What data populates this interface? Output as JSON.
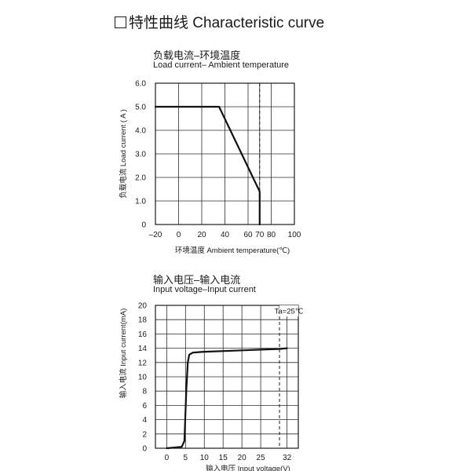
{
  "heading": {
    "zh": "特性曲线",
    "en": "Characteristic curve"
  },
  "chart_data": [
    {
      "type": "line",
      "title": "负载电流–环境温度",
      "subtitle": "Load current– Ambient temperature",
      "xlabel": "环境温度 Ambient temperature(℃)",
      "ylabel": "负载电流 Load current ( A )",
      "x_ticks": [
        "–20",
        "0",
        "20",
        "40",
        "60",
        "70",
        "80",
        "100"
      ],
      "x_tick_values": [
        -20,
        0,
        20,
        40,
        60,
        70,
        80,
        100
      ],
      "y_ticks": [
        "0",
        "1.0",
        "2.0",
        "3.0",
        "4.0",
        "5.0",
        "6.0"
      ],
      "y_tick_values": [
        0,
        1,
        2,
        3,
        4,
        5,
        6
      ],
      "xlim": [
        -20,
        100
      ],
      "ylim": [
        0,
        6
      ],
      "grid": true,
      "series": [
        {
          "x": [
            -20,
            35,
            70,
            70
          ],
          "y": [
            5.0,
            5.0,
            1.4,
            0
          ]
        }
      ],
      "reference_line": {
        "x": 70,
        "style": "dashed"
      }
    },
    {
      "type": "line",
      "title": "输入电压–输入电流",
      "subtitle": "Input voltage–Input current",
      "xlabel": "输入电压 Input voltage(V)",
      "ylabel": "输入电流 Input current(mA)",
      "annotation": "Ta=25℃",
      "x_ticks": [
        "0",
        "5",
        "10",
        "15",
        "20",
        "25",
        "32"
      ],
      "x_tick_values": [
        0,
        5,
        10,
        15,
        20,
        25,
        32
      ],
      "y_ticks": [
        "0",
        "2",
        "4",
        "6",
        "8",
        "10",
        "12",
        "14",
        "16",
        "18",
        "20"
      ],
      "y_tick_values": [
        0,
        2,
        4,
        6,
        8,
        10,
        12,
        14,
        16,
        18,
        20
      ],
      "xlim": [
        -3,
        35
      ],
      "ylim": [
        0,
        20
      ],
      "grid": true,
      "series": [
        {
          "x": [
            0,
            4,
            4.7,
            5.2,
            5.6,
            6,
            7,
            10,
            20,
            30,
            32
          ],
          "y": [
            0,
            0.2,
            1,
            8,
            12,
            13.1,
            13.4,
            13.5,
            13.7,
            13.9,
            14.0
          ]
        }
      ],
      "reference_line": {
        "x": 30,
        "style": "dashed"
      }
    }
  ]
}
